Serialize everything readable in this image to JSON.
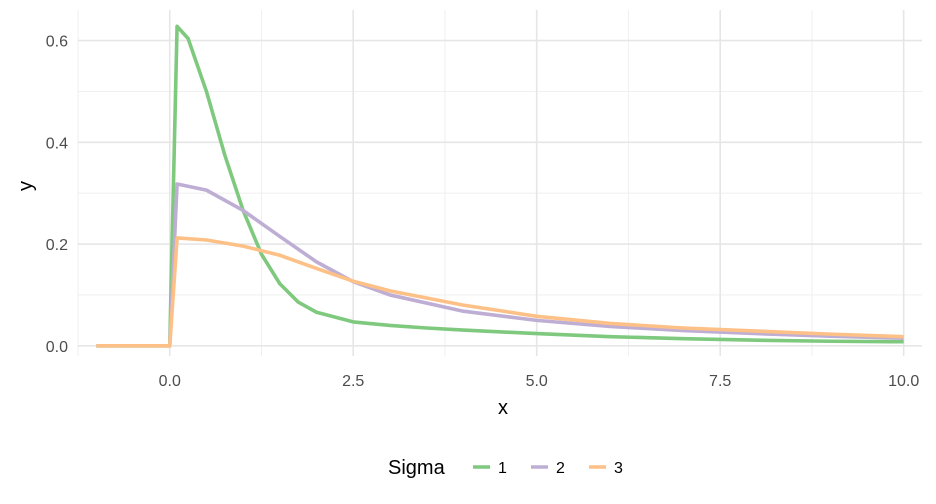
{
  "chart_data": {
    "type": "line",
    "title": "",
    "xlabel": "x",
    "ylabel": "y",
    "xlim": [
      -1.25,
      10.25
    ],
    "ylim": [
      -0.02,
      0.66
    ],
    "x_ticks": [
      0,
      2.5,
      5,
      7.5,
      10
    ],
    "x_tick_labels": [
      "0.0",
      "2.5",
      "5.0",
      "7.5",
      "10.0"
    ],
    "y_ticks": [
      0,
      0.2,
      0.4,
      0.6
    ],
    "y_tick_labels": [
      "0.0",
      "0.2",
      "0.4",
      "0.6"
    ],
    "grid": true,
    "legend": {
      "title": "Sigma",
      "position": "bottom"
    },
    "series": [
      {
        "name": "1",
        "color": "#7fc97f",
        "x": [
          -1,
          -0.1,
          0,
          0.1,
          0.25,
          0.5,
          0.75,
          1,
          1.25,
          1.5,
          1.75,
          2,
          2.5,
          3,
          3.5,
          4,
          5,
          6,
          7,
          8,
          9,
          10
        ],
        "y": [
          0,
          0,
          0,
          0.628,
          0.604,
          0.5,
          0.375,
          0.266,
          0.18,
          0.122,
          0.086,
          0.066,
          0.047,
          0.04,
          0.035,
          0.031,
          0.024,
          0.018,
          0.014,
          0.011,
          0.009,
          0.008
        ]
      },
      {
        "name": "2",
        "color": "#beaed4",
        "x": [
          -1,
          -0.1,
          0,
          0.1,
          0.5,
          1,
          1.5,
          2,
          2.5,
          3,
          4,
          5,
          6,
          7,
          8,
          9,
          10
        ],
        "y": [
          0,
          0,
          0,
          0.318,
          0.306,
          0.266,
          0.215,
          0.165,
          0.126,
          0.1,
          0.068,
          0.05,
          0.038,
          0.03,
          0.024,
          0.019,
          0.015
        ]
      },
      {
        "name": "3",
        "color": "#fdc086",
        "x": [
          -1,
          -0.1,
          0,
          0.1,
          0.5,
          1,
          1.5,
          2,
          2.5,
          3,
          4,
          5,
          6,
          7,
          8,
          9,
          10
        ],
        "y": [
          0,
          0,
          0,
          0.212,
          0.208,
          0.196,
          0.178,
          0.152,
          0.127,
          0.108,
          0.08,
          0.058,
          0.044,
          0.035,
          0.029,
          0.023,
          0.018
        ]
      }
    ]
  }
}
